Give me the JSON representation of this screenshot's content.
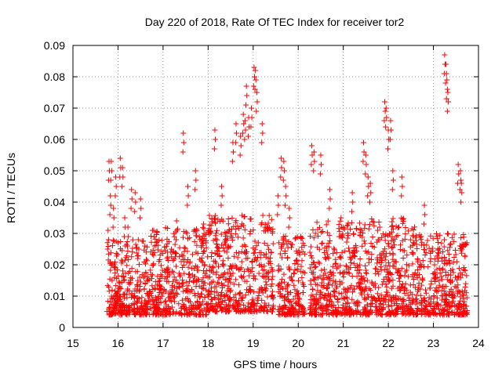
{
  "chart_data": {
    "type": "scatter",
    "title": "Day 220 of 2018, Rate Of TEC Index for receiver tor2",
    "xlabel": "GPS time / hours",
    "ylabel": "ROTI / TECUs",
    "xlim": [
      15,
      24
    ],
    "ylim": [
      0,
      0.09
    ],
    "x_ticks": [
      15,
      16,
      17,
      18,
      19,
      20,
      21,
      22,
      23,
      24
    ],
    "y_ticks": [
      0,
      0.01,
      0.02,
      0.03,
      0.04,
      0.05,
      0.06,
      0.07,
      0.08,
      0.09
    ],
    "x_tick_labels": [
      "15",
      "16",
      "17",
      "18",
      "19",
      "20",
      "21",
      "22",
      "23",
      "24"
    ],
    "y_tick_labels": [
      "0",
      "0.01",
      "0.02",
      "0.03",
      "0.04",
      "0.05",
      "0.06",
      "0.07",
      "0.08",
      "0.09"
    ],
    "grid": true,
    "marker": "+",
    "series_color": "#ff0000",
    "series": [
      {
        "name": "ROTI",
        "x": [
          15.78,
          15.8,
          15.83,
          15.85,
          15.9,
          15.95,
          16.05,
          16.1,
          16.15,
          16.22,
          16.3,
          16.38,
          16.45,
          16.5,
          16.8,
          17.1,
          17.3,
          17.45,
          17.55,
          17.72,
          17.9,
          18.15,
          18.3,
          18.55,
          18.62,
          18.72,
          18.78,
          18.82,
          18.85,
          18.9,
          18.96,
          19.02,
          19.05,
          19.08,
          19.2,
          19.55,
          19.62,
          19.68,
          19.72,
          19.8,
          20.3,
          20.35,
          20.5,
          20.7,
          20.95,
          21.2,
          21.45,
          21.5,
          21.55,
          21.6,
          21.92,
          21.95,
          22.0,
          22.05,
          22.1,
          22.3,
          22.8,
          23.25,
          23.28,
          23.3,
          23.32,
          23.55,
          23.6,
          23.62
        ],
        "y": [
          0.031,
          0.053,
          0.042,
          0.053,
          0.038,
          0.048,
          0.054,
          0.051,
          0.035,
          0.032,
          0.044,
          0.043,
          0.028,
          0.041,
          0.029,
          0.022,
          0.034,
          0.062,
          0.045,
          0.05,
          0.033,
          0.063,
          0.045,
          0.059,
          0.065,
          0.061,
          0.068,
          0.066,
          0.077,
          0.067,
          0.07,
          0.083,
          0.082,
          0.075,
          0.065,
          0.042,
          0.054,
          0.053,
          0.045,
          0.038,
          0.058,
          0.056,
          0.055,
          0.044,
          0.035,
          0.043,
          0.059,
          0.055,
          0.048,
          0.046,
          0.072,
          0.07,
          0.063,
          0.066,
          0.05,
          0.048,
          0.039,
          0.087,
          0.084,
          0.079,
          0.075,
          0.052,
          0.05,
          0.046
        ]
      }
    ],
    "dense_regions": [
      {
        "x_range": [
          15.75,
          16.72
        ],
        "y_range": [
          0.004,
          0.028
        ]
      },
      {
        "x_range": [
          16.72,
          18.0
        ],
        "y_range": [
          0.004,
          0.032
        ]
      },
      {
        "x_range": [
          18.0,
          19.45
        ],
        "y_range": [
          0.005,
          0.036
        ]
      },
      {
        "x_range": [
          19.55,
          20.15
        ],
        "y_range": [
          0.004,
          0.03
        ]
      },
      {
        "x_range": [
          20.25,
          21.6
        ],
        "y_range": [
          0.004,
          0.034
        ]
      },
      {
        "x_range": [
          21.6,
          22.6
        ],
        "y_range": [
          0.004,
          0.035
        ]
      },
      {
        "x_range": [
          22.6,
          23.75
        ],
        "y_range": [
          0.004,
          0.03
        ]
      }
    ]
  }
}
